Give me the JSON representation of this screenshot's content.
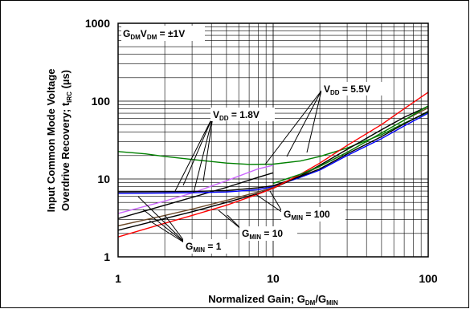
{
  "chart_data": {
    "type": "line",
    "xscale": "log",
    "yscale": "log",
    "xlim": [
      1,
      100
    ],
    "ylim": [
      1,
      1000
    ],
    "grid": true,
    "x_ticks": [
      "1",
      "10",
      "100"
    ],
    "y_ticks": [
      "1",
      "10",
      "100",
      "1000"
    ],
    "xlabel": {
      "main": "Normalized Gain; G",
      "sub1": "DM",
      "mid": "/G",
      "sub2": "MIN"
    },
    "ylabel": {
      "line1": "Input Common Mode Voltage",
      "line2_main": "Overdrive Recovery; t",
      "line2_sub": "IRC",
      "line2_unit": " (µs)"
    },
    "condition_label": {
      "g1": "G",
      "s1": "DM",
      "v": "V",
      "s2": "DM",
      "rest": " = ±1V"
    },
    "annotations": {
      "vdd_18": {
        "main": "V",
        "sub": "DD",
        "rest": " = 1.8V"
      },
      "vdd_55": {
        "main": "V",
        "sub": "DD",
        "rest": " = 5.5V"
      },
      "gmin_1": {
        "main": "G",
        "sub": "MIN",
        "rest": " = 1"
      },
      "gmin_10": {
        "main": "G",
        "sub": "MIN",
        "rest": " = 10"
      },
      "gmin_100": {
        "main": "G",
        "sub": "MIN",
        "rest": " = 100"
      }
    },
    "series": [
      {
        "color": "#008000",
        "points": [
          [
            1,
            22.5
          ],
          [
            1.5,
            21
          ],
          [
            2,
            19.5
          ],
          [
            3,
            17.8
          ],
          [
            5,
            16
          ],
          [
            7,
            15.4
          ],
          [
            10,
            15.5
          ],
          [
            15,
            17
          ],
          [
            20,
            19.5
          ],
          [
            30,
            25
          ],
          [
            50,
            37
          ],
          [
            70,
            52
          ],
          [
            100,
            72
          ]
        ]
      },
      {
        "color": "#cc66ff",
        "points": [
          [
            1,
            3.6
          ],
          [
            2,
            5.2
          ],
          [
            3,
            6.6
          ],
          [
            5,
            9.5
          ],
          [
            8,
            13.5
          ],
          [
            10,
            15
          ]
        ]
      },
      {
        "color": "#000000",
        "points": [
          [
            1,
            3.1
          ],
          [
            2,
            4.6
          ],
          [
            3,
            5.8
          ],
          [
            5,
            7.8
          ],
          [
            8,
            10.5
          ],
          [
            10,
            12
          ]
        ]
      },
      {
        "color": "#0000ff",
        "points": [
          [
            1,
            6.5
          ],
          [
            2,
            6.6
          ],
          [
            3,
            6.65
          ],
          [
            5,
            6.8
          ],
          [
            8,
            7.3
          ],
          [
            10,
            8
          ],
          [
            15,
            10.5
          ],
          [
            20,
            13
          ],
          [
            30,
            20
          ],
          [
            50,
            33
          ],
          [
            70,
            48
          ],
          [
            100,
            70
          ]
        ]
      },
      {
        "color": "#000000",
        "points": [
          [
            1,
            6.8
          ],
          [
            3,
            6.9
          ],
          [
            5,
            7.1
          ],
          [
            8,
            7.7
          ],
          [
            10,
            8.2
          ],
          [
            15,
            10.8
          ],
          [
            20,
            13.5
          ],
          [
            30,
            21
          ],
          [
            50,
            35
          ],
          [
            70,
            51
          ],
          [
            100,
            74
          ]
        ]
      },
      {
        "color": "#6b4a2a",
        "points": [
          [
            1,
            2.5
          ],
          [
            2,
            3.4
          ],
          [
            3,
            4.1
          ],
          [
            5,
            5.3
          ],
          [
            8,
            6.8
          ],
          [
            10,
            7.8
          ],
          [
            15,
            11
          ],
          [
            20,
            14.5
          ],
          [
            30,
            22
          ],
          [
            50,
            39
          ],
          [
            70,
            57
          ],
          [
            100,
            82
          ]
        ]
      },
      {
        "color": "#000000",
        "points": [
          [
            1,
            2.2
          ],
          [
            2,
            3.1
          ],
          [
            3,
            3.8
          ],
          [
            5,
            5
          ],
          [
            8,
            6.5
          ],
          [
            10,
            7.6
          ],
          [
            15,
            11
          ],
          [
            20,
            15
          ],
          [
            30,
            24
          ],
          [
            50,
            43
          ],
          [
            70,
            62
          ],
          [
            100,
            86
          ]
        ]
      },
      {
        "color": "#ff0000",
        "points": [
          [
            1,
            1.8
          ],
          [
            2,
            2.7
          ],
          [
            3,
            3.4
          ],
          [
            5,
            4.6
          ],
          [
            8,
            6.4
          ],
          [
            10,
            7.6
          ],
          [
            15,
            11.5
          ],
          [
            20,
            16
          ],
          [
            30,
            27
          ],
          [
            50,
            50
          ],
          [
            70,
            80
          ],
          [
            100,
            130
          ]
        ]
      },
      {
        "color": "#008000",
        "points": [
          [
            10,
            8.8
          ],
          [
            15,
            11.5
          ],
          [
            20,
            14.5
          ],
          [
            30,
            22
          ],
          [
            50,
            39
          ],
          [
            70,
            57
          ],
          [
            100,
            87
          ]
        ]
      }
    ]
  }
}
